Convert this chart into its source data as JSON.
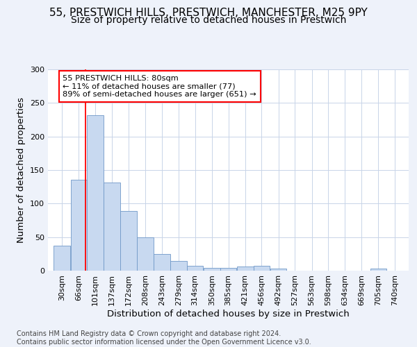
{
  "title1": "55, PRESTWICH HILLS, PRESTWICH, MANCHESTER, M25 9PY",
  "title2": "Size of property relative to detached houses in Prestwich",
  "xlabel": "Distribution of detached houses by size in Prestwich",
  "ylabel": "Number of detached properties",
  "bin_labels": [
    "30sqm",
    "66sqm",
    "101sqm",
    "137sqm",
    "172sqm",
    "208sqm",
    "243sqm",
    "279sqm",
    "314sqm",
    "350sqm",
    "385sqm",
    "421sqm",
    "456sqm",
    "492sqm",
    "527sqm",
    "563sqm",
    "598sqm",
    "634sqm",
    "669sqm",
    "705sqm",
    "740sqm"
  ],
  "bar_heights": [
    37,
    136,
    232,
    131,
    89,
    50,
    25,
    14,
    7,
    4,
    4,
    6,
    7,
    3,
    0,
    0,
    0,
    0,
    0,
    3,
    0
  ],
  "bar_color": "#c8d9f0",
  "bar_edge_color": "#7098c8",
  "grid_color": "#c8d4e8",
  "annotation_text": "55 PRESTWICH HILLS: 80sqm\n← 11% of detached houses are smaller (77)\n89% of semi-detached houses are larger (651) →",
  "annotation_box_color": "white",
  "annotation_box_edge_color": "red",
  "vline_x": 80,
  "vline_color": "red",
  "bin_width": 35,
  "bin_starts": [
    30,
    66,
    101,
    137,
    172,
    208,
    243,
    279,
    314,
    350,
    385,
    421,
    456,
    492,
    527,
    563,
    598,
    634,
    669,
    705,
    740
  ],
  "ylim": [
    0,
    300
  ],
  "yticks": [
    0,
    50,
    100,
    150,
    200,
    250,
    300
  ],
  "footer_text": "Contains HM Land Registry data © Crown copyright and database right 2024.\nContains public sector information licensed under the Open Government Licence v3.0.",
  "background_color": "#eef2fa",
  "plot_background": "white",
  "title_fontsize": 11,
  "subtitle_fontsize": 10,
  "axis_label_fontsize": 9.5,
  "tick_fontsize": 8,
  "footer_fontsize": 7
}
